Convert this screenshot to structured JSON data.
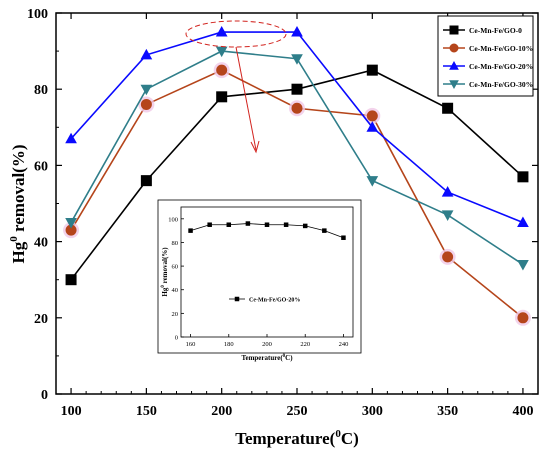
{
  "chart_data": [
    {
      "type": "line",
      "xlabel": "Temperature(",
      "xlabel_sup": "0",
      "xlabel_suffix": "C)",
      "ylabel_prefix": "Hg",
      "ylabel_sup": "0",
      "ylabel_suffix": " removal(%)",
      "x": [
        100,
        150,
        200,
        250,
        300,
        350,
        400
      ],
      "xlim": [
        90,
        410
      ],
      "ylim": [
        0,
        100
      ],
      "xticks": [
        "100",
        "150",
        "200",
        "250",
        "300",
        "350",
        "400"
      ],
      "yticks": [
        "0",
        "20",
        "40",
        "60",
        "80",
        "100"
      ],
      "legend_position": "top-right",
      "series": [
        {
          "name": "Ce-Mn-Fe/GO-0",
          "values": [
            30,
            56,
            78,
            80,
            85,
            75,
            57
          ],
          "color": "#000000",
          "marker": "square"
        },
        {
          "name": "Ce-Mn-Fe/GO-10%",
          "values": [
            43,
            76,
            85,
            75,
            73,
            36,
            20
          ],
          "color": "#b5451b",
          "marker": "circle"
        },
        {
          "name": "Ce-Mn-Fe/GO-20%",
          "values": [
            67,
            89,
            95,
            95,
            70,
            53,
            45
          ],
          "color": "#0a0aff",
          "marker": "triangle-up"
        },
        {
          "name": "Ce-Mn-Fe/GO-30%",
          "values": [
            45,
            80,
            90,
            88,
            56,
            47,
            34
          ],
          "color": "#2f7e8a",
          "marker": "triangle-down"
        }
      ]
    },
    {
      "type": "line",
      "xlabel": "Temperature(",
      "xlabel_sup": "0",
      "xlabel_suffix": "C)",
      "ylabel_prefix": "Hg",
      "ylabel_sup": "0",
      "ylabel_suffix": " removal(%)",
      "x": [
        160,
        170,
        180,
        190,
        200,
        210,
        220,
        230,
        240
      ],
      "xlim": [
        155,
        245
      ],
      "ylim": [
        0,
        110
      ],
      "xticks": [
        "160",
        "180",
        "200",
        "220",
        "240"
      ],
      "yticks": [
        "0",
        "20",
        "40",
        "60",
        "80",
        "100"
      ],
      "legend_position": "center-left",
      "series": [
        {
          "name": "Ce-Mn-Fe/GO-20%",
          "values": [
            90,
            95,
            95,
            96,
            95,
            95,
            94,
            90,
            84
          ],
          "color": "#000000",
          "marker": "square"
        }
      ]
    }
  ]
}
